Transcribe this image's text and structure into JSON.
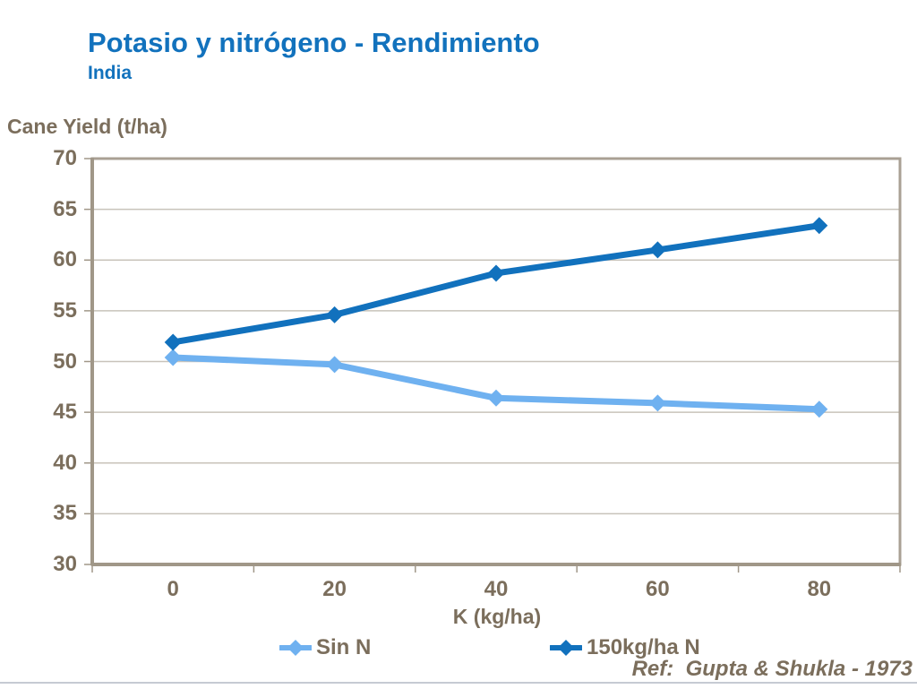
{
  "slide": {
    "title": "Potasio y nitrógeno - Rendimiento",
    "subtitle": "India",
    "reference": "Ref:  Gupta & Shukla - 1973"
  },
  "colors": {
    "title_blue": "#1272BD",
    "text_gray_brown": "#7B6E5C",
    "axis_frame": "#A9A094",
    "axis_line": "#A09788",
    "gridline": "#C8C3BA",
    "footer_line": "#C6CBD3",
    "series_sin_n": "#6FB1F0",
    "series_150n": "#1171BD"
  },
  "chart_data": {
    "type": "line",
    "title": "",
    "ylabel": "Cane Yield (t/ha)",
    "xlabel": "K (kg/ha)",
    "categories": [
      "0",
      "20",
      "40",
      "60",
      "80"
    ],
    "x_values": [
      0,
      20,
      40,
      60,
      80
    ],
    "series": [
      {
        "name": "Sin N",
        "color": "#6FB1F0",
        "values": [
          50.4,
          49.7,
          46.4,
          45.9,
          45.3
        ]
      },
      {
        "name": "150kg/ha N",
        "color": "#1171BD",
        "values": [
          51.9,
          54.6,
          58.7,
          61.0,
          63.4
        ]
      }
    ],
    "ylim": [
      30,
      70
    ],
    "y_tick_step": 5,
    "y_ticks": [
      70,
      65,
      60,
      55,
      50,
      45,
      40,
      35,
      30
    ],
    "grid": "horizontal",
    "legend_position": "bottom",
    "marker": "diamond"
  }
}
